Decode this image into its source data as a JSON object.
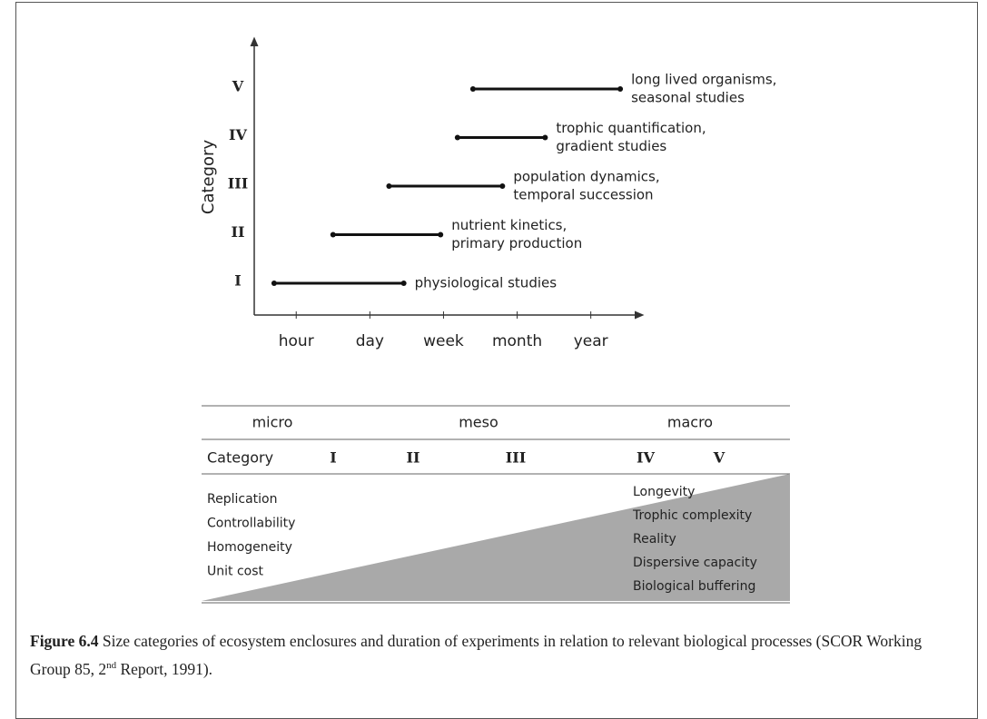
{
  "figure": {
    "chart": {
      "type": "range",
      "y_label": "Category",
      "categories": [
        "I",
        "II",
        "III",
        "IV",
        "V"
      ],
      "ranges": [
        [
          -0.3,
          1.46
        ],
        [
          0.5,
          1.96
        ],
        [
          1.26,
          2.8
        ],
        [
          2.19,
          3.38
        ],
        [
          2.4,
          4.4
        ]
      ],
      "annotations": [
        [
          "physiological studies"
        ],
        [
          "nutrient kinetics,",
          "primary production"
        ],
        [
          "population dynamics,",
          "temporal succession"
        ],
        [
          "trophic quantification,",
          "gradient studies"
        ],
        [
          "long lived organisms,",
          "seasonal studies"
        ]
      ],
      "xlim": [
        -0.57,
        4.67
      ],
      "xticks": [
        {
          "value": 0,
          "label": "hour"
        },
        {
          "value": 1,
          "label": "day"
        },
        {
          "value": 2,
          "label": "week"
        },
        {
          "value": 3,
          "label": "month"
        },
        {
          "value": 4,
          "label": "year"
        }
      ]
    },
    "table": {
      "groups": [
        "micro",
        "meso",
        "macro"
      ],
      "row_header": "Category",
      "row": [
        "I",
        "II",
        "III",
        "IV",
        "V"
      ],
      "left": [
        "Replication",
        "Controllability",
        "Homogeneity",
        "Unit cost"
      ],
      "right": [
        "Longevity",
        "Trophic complexity",
        "Reality",
        "Dispersive capacity",
        "Biological buffering"
      ]
    },
    "caption": {
      "label": "Figure 6.4",
      "text": " Size categories of ecosystem enclosures and duration of experiments in relation to relevant biological processes (SCOR Working Group 85, 2",
      "sup": "nd",
      "end": " Report, 1991)."
    }
  }
}
